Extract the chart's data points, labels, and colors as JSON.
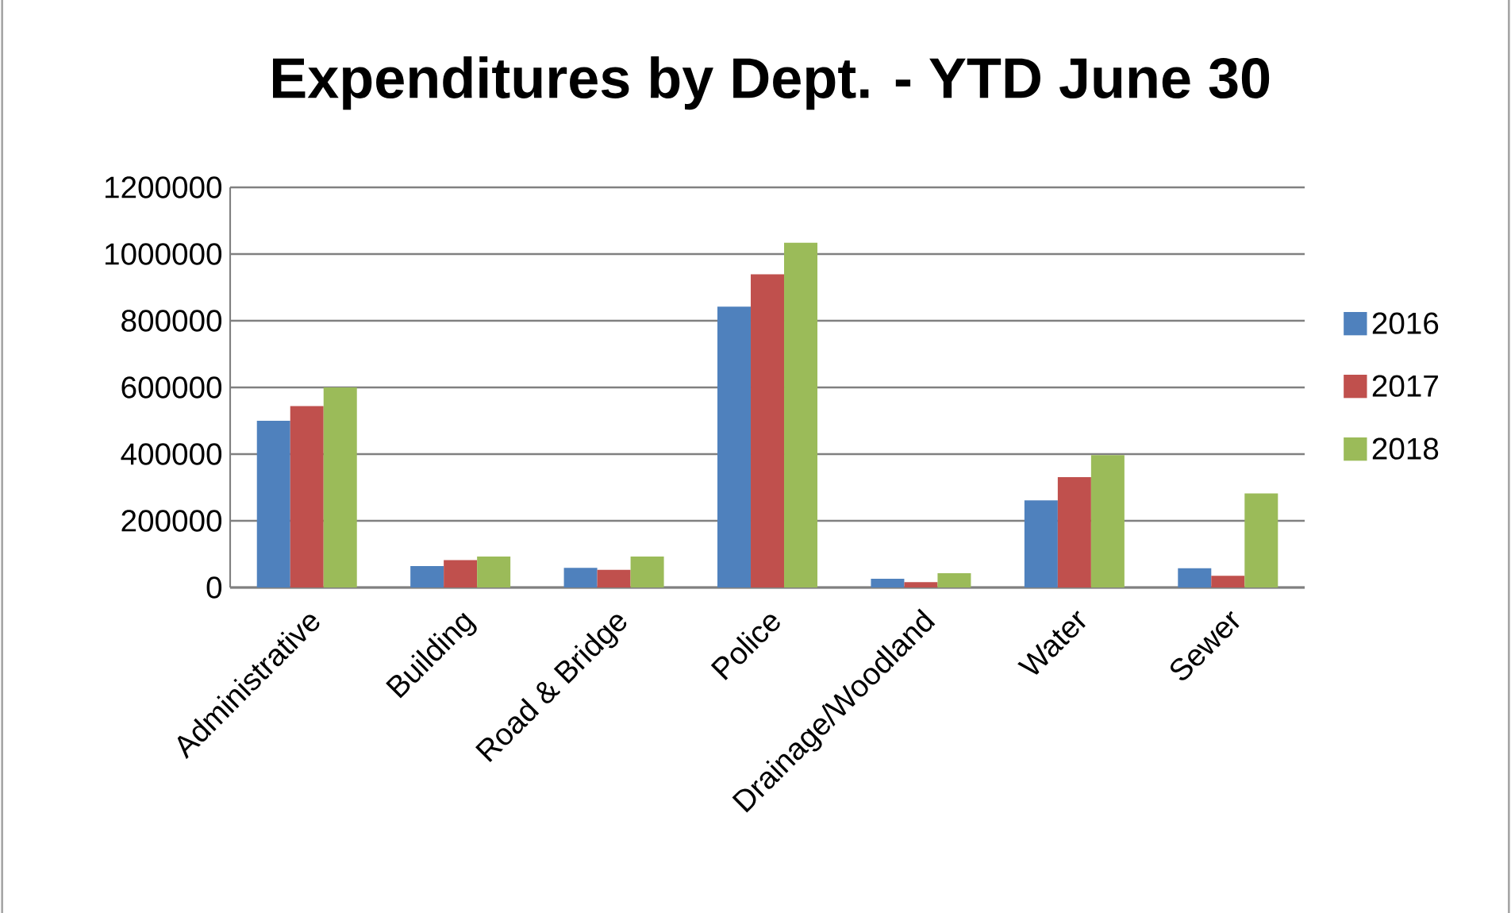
{
  "chart_data": {
    "type": "bar",
    "title": "Expenditures by Dept. - YTD June 30",
    "categories": [
      "Administrative",
      "Building",
      "Road & Bridge",
      "Police",
      "Drainage/Woodland",
      "Water",
      "Sewer"
    ],
    "series": [
      {
        "name": "2016",
        "color": "#4f81bd",
        "values": [
          500000,
          64000,
          59000,
          842000,
          26000,
          261000,
          58000
        ]
      },
      {
        "name": "2017",
        "color": "#c0504d",
        "values": [
          544000,
          82000,
          53000,
          939000,
          16000,
          331000,
          35000
        ]
      },
      {
        "name": "2018",
        "color": "#9bbb59",
        "values": [
          600000,
          93000,
          93000,
          1034000,
          43000,
          397000,
          282000
        ]
      }
    ],
    "ylim": [
      0,
      1200000
    ],
    "yticks": [
      0,
      200000,
      400000,
      600000,
      800000,
      1000000,
      1200000
    ],
    "grid": "y",
    "legend": "right"
  }
}
